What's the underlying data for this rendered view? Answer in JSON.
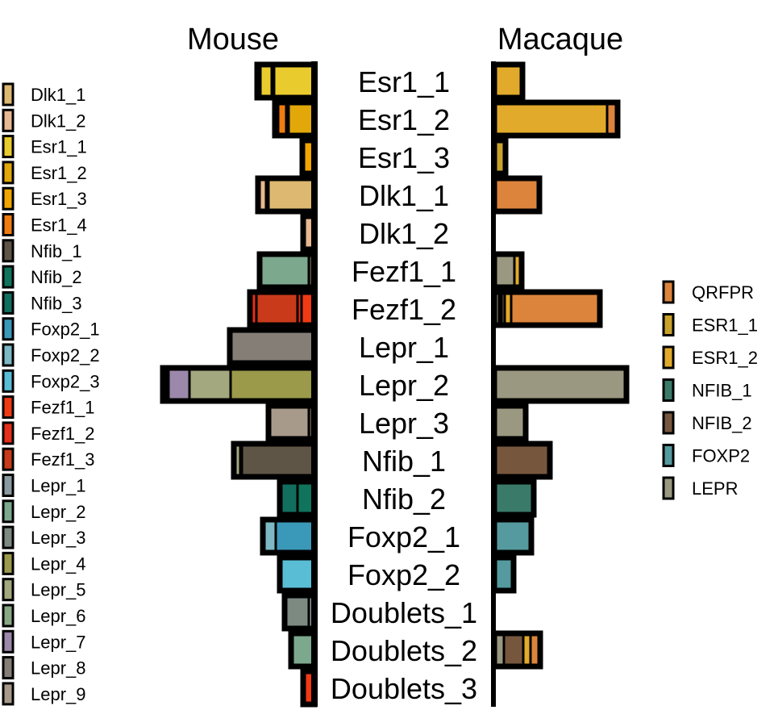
{
  "chart_data": {
    "type": "bar",
    "orientation": "horizontal",
    "stacked": true,
    "categories": [
      "Esr1_1",
      "Esr1_2",
      "Esr1_3",
      "Dlk1_1",
      "Dlk1_2",
      "Fezf1_1",
      "Fezf1_2",
      "Lepr_1",
      "Lepr_2",
      "Lepr_3",
      "Nfib_1",
      "Nfib_2",
      "Foxp2_1",
      "Foxp2_2",
      "Doublets_1",
      "Doublets_2",
      "Doublets_3"
    ],
    "panels": [
      {
        "title": "Mouse",
        "direction": "left",
        "legend_position": "left",
        "legend": [
          {
            "name": "Dlk1_1",
            "color": "#DDB870"
          },
          {
            "name": "Dlk1_2",
            "color": "#E8B890"
          },
          {
            "name": "Esr1_1",
            "color": "#EACB2E"
          },
          {
            "name": "Esr1_2",
            "color": "#E2A80A"
          },
          {
            "name": "Esr1_3",
            "color": "#F0A500"
          },
          {
            "name": "Esr1_4",
            "color": "#F07C10"
          },
          {
            "name": "Nfib_1",
            "color": "#5E5546"
          },
          {
            "name": "Nfib_2",
            "color": "#10745C"
          },
          {
            "name": "Nfib_3",
            "color": "#126E5E"
          },
          {
            "name": "Foxp2_1",
            "color": "#3A98B8"
          },
          {
            "name": "Foxp2_2",
            "color": "#7DB8C5"
          },
          {
            "name": "Foxp2_3",
            "color": "#5ABDD6"
          },
          {
            "name": "Fezf1_1",
            "color": "#F03A14"
          },
          {
            "name": "Fezf1_2",
            "color": "#E62F1A"
          },
          {
            "name": "Fezf1_3",
            "color": "#C83A1A"
          },
          {
            "name": "Lepr_1",
            "color": "#8A9AA0"
          },
          {
            "name": "Lepr_2",
            "color": "#7CA88E"
          },
          {
            "name": "Lepr_3",
            "color": "#7C8A82"
          },
          {
            "name": "Lepr_4",
            "color": "#9A9A4A"
          },
          {
            "name": "Lepr_5",
            "color": "#A4A87E"
          },
          {
            "name": "Lepr_6",
            "color": "#88A884"
          },
          {
            "name": "Lepr_7",
            "color": "#9C88AA"
          },
          {
            "name": "Lepr_8",
            "color": "#847E76"
          },
          {
            "name": "Lepr_9",
            "color": "#A89A8A"
          }
        ],
        "bars": [
          [
            {
              "s": "Esr1_1",
              "v": 50
            },
            {
              "s": "Esr1_2",
              "v": 3
            },
            {
              "s": "Esr1_1",
              "v": 14
            },
            {
              "s": "Esr1_3",
              "v": 4
            }
          ],
          [
            {
              "s": "Esr1_2",
              "v": 32
            },
            {
              "s": "Esr1_3",
              "v": 3
            },
            {
              "s": "Esr1_4",
              "v": 10
            },
            {
              "s": "Esr1_3",
              "v": 4
            }
          ],
          [
            {
              "s": "Esr1_3",
              "v": 15
            }
          ],
          [
            {
              "s": "Dlk1_1",
              "v": 57
            },
            {
              "s": "Dlk1_2",
              "v": 3
            },
            {
              "s": "Dlk1_2",
              "v": 10
            }
          ],
          [
            {
              "s": "Dlk1_2",
              "v": 14
            }
          ],
          [
            {
              "s": "Nfib_1",
              "v": 7
            },
            {
              "s": "Lepr_2",
              "v": 61
            }
          ],
          [
            {
              "s": "Fezf1_1",
              "v": 16
            },
            {
              "s": "Fezf1_2",
              "v": 5
            },
            {
              "s": "Fezf1_3",
              "v": 51
            },
            {
              "s": "Fezf1_2",
              "v": 8
            }
          ],
          [
            {
              "s": "Lepr_8",
              "v": 105
            }
          ],
          [
            {
              "s": "Lepr_4",
              "v": 104
            },
            {
              "s": "Lepr_5",
              "v": 51
            },
            {
              "s": "Lepr_7",
              "v": 26
            },
            {
              "s": "Lepr_8",
              "v": 2
            },
            {
              "s": "Lepr_9",
              "v": 5
            }
          ],
          [
            {
              "s": "Nfib_1",
              "v": 7
            },
            {
              "s": "Lepr_9",
              "v": 50
            }
          ],
          [
            {
              "s": "Nfib_1",
              "v": 90
            },
            {
              "s": "Lepr_3",
              "v": 2
            },
            {
              "s": "Lepr_5",
              "v": 8
            }
          ],
          [
            {
              "s": "Nfib_2",
              "v": 21
            },
            {
              "s": "Nfib_3",
              "v": 22
            }
          ],
          [
            {
              "s": "Foxp2_1",
              "v": 48
            },
            {
              "s": "Foxp2_2",
              "v": 16
            }
          ],
          [
            {
              "s": "Foxp2_3",
              "v": 43
            }
          ],
          [
            {
              "s": "Lepr_1",
              "v": 7
            },
            {
              "s": "Lepr_3",
              "v": 30
            }
          ],
          [
            {
              "s": "Lepr_2",
              "v": 29
            }
          ],
          [
            {
              "s": "Fezf1_1",
              "v": 14
            }
          ]
        ]
      },
      {
        "title": "Macaque",
        "direction": "right",
        "legend_position": "right",
        "legend": [
          {
            "name": "QRFPR",
            "color": "#DC843C"
          },
          {
            "name": "ESR1_1",
            "color": "#C9A22C"
          },
          {
            "name": "ESR1_2",
            "color": "#E2AA2A"
          },
          {
            "name": "NFIB_1",
            "color": "#3A7A68"
          },
          {
            "name": "NFIB_2",
            "color": "#76573E"
          },
          {
            "name": "FOXP2",
            "color": "#559A9E"
          },
          {
            "name": "LEPR",
            "color": "#9A9880"
          }
        ],
        "bars": [
          [
            {
              "s": "ESR1_2",
              "v": 35
            }
          ],
          [
            {
              "s": "ESR1_2",
              "v": 140
            },
            {
              "s": "QRFPR",
              "v": 13
            }
          ],
          [
            {
              "s": "ESR1_1",
              "v": 14
            }
          ],
          [
            {
              "s": "QRFPR",
              "v": 56
            }
          ],
          [],
          [
            {
              "s": "LEPR",
              "v": 25
            },
            {
              "s": "ESR1_2",
              "v": 9
            }
          ],
          [
            {
              "s": "LEPR",
              "v": 6
            },
            {
              "s": "NFIB_1",
              "v": 3
            },
            {
              "s": "NFIB_2",
              "v": 4
            },
            {
              "s": "ESR1_2",
              "v": 8
            },
            {
              "s": "QRFPR",
              "v": 110
            }
          ],
          [],
          [
            {
              "s": "LEPR",
              "v": 164
            }
          ],
          [
            {
              "s": "LEPR",
              "v": 39
            }
          ],
          [
            {
              "s": "NFIB_2",
              "v": 69
            }
          ],
          [
            {
              "s": "NFIB_1",
              "v": 49
            }
          ],
          [
            {
              "s": "FOXP2",
              "v": 46
            }
          ],
          [
            {
              "s": "FOXP2",
              "v": 24
            }
          ],
          [],
          [
            {
              "s": "LEPR",
              "v": 12
            },
            {
              "s": "NFIB_2",
              "v": 24
            },
            {
              "s": "ESR1_2",
              "v": 9
            },
            {
              "s": "QRFPR",
              "v": 12
            }
          ],
          []
        ]
      }
    ]
  }
}
